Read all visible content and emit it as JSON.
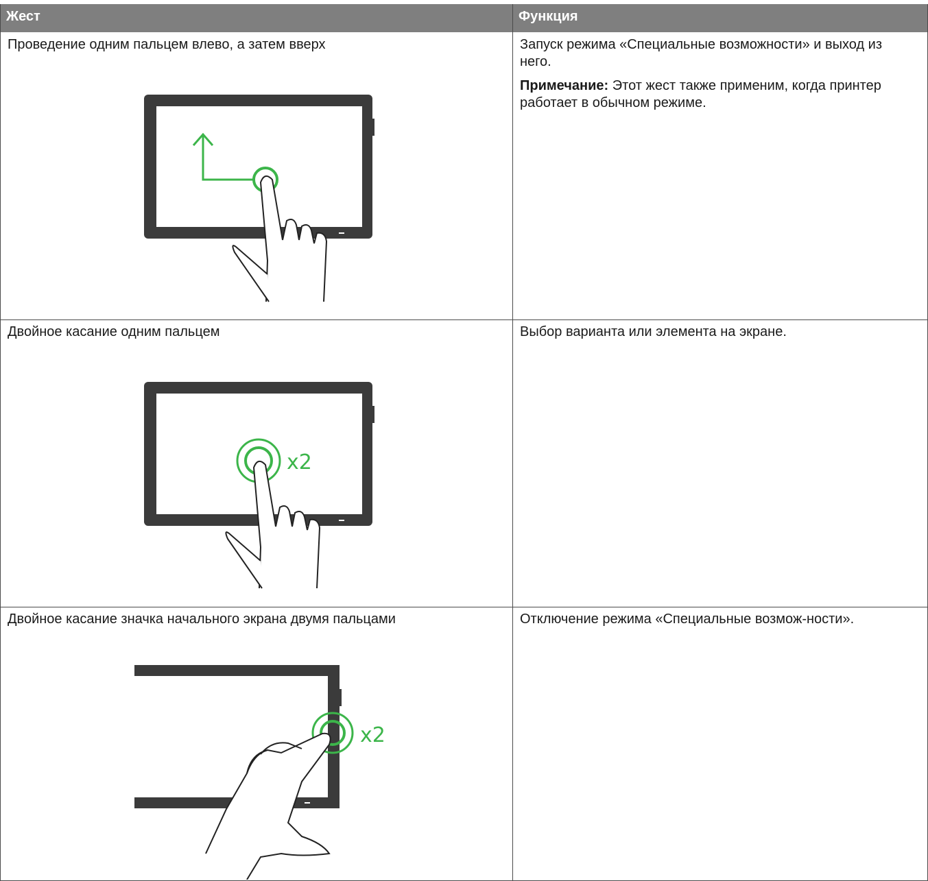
{
  "table": {
    "headers": [
      "Жест",
      "Функция"
    ],
    "rows": [
      {
        "gesture": "Проведение одним пальцем влево, а затем вверх",
        "function": "Запуск режима «Специальные возможности» и выход из него.",
        "note_label": "Примечание:",
        "note": "Этот жест также применим, когда принтер работает в обычном режиме."
      },
      {
        "gesture": "Двойное касание одним пальцем",
        "function": "Выбор варианта или элемента на экране.",
        "illustration_label": "x2"
      },
      {
        "gesture": "Двойное касание значка начального экрана двумя пальцами",
        "function": "Отключение режима «Специальные возмож-ности».",
        "illustration_label": "x2"
      }
    ]
  }
}
